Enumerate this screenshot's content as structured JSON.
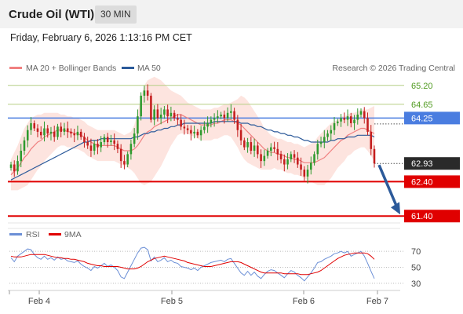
{
  "header": {
    "title": "Crude Oil (WTI)",
    "timeframe": "30 MIN",
    "timestamp": "Friday, February 6, 2026 1:13:16 PM CET"
  },
  "legend": {
    "ma20": "MA 20 + Bollinger Bands",
    "ma50": "MA 50",
    "copyright": "Research © 2026 Trading Central"
  },
  "colors": {
    "bull_candle": "#2e9a2e",
    "bear_candle": "#c41e1e",
    "ma20": "#f08080",
    "ma50": "#2c5a9a",
    "bollinger_fill": "#fde1dc",
    "resistance_line": "#b6cf85",
    "pivot_line": "#4a7de0",
    "support_line": "#e00000",
    "rsi": "#6b8fd6",
    "rsi_ma": "#e00000",
    "forecast_arrow": "#2c5a9a"
  },
  "chart_data": [
    {
      "type": "candlestick",
      "title": "Crude Oil (WTI)",
      "interval": "30 MIN",
      "x_tick_labels": [
        "Feb 4",
        "Feb 5",
        "Feb 6",
        "Feb 7"
      ],
      "ylim": [
        61.2,
        65.4
      ],
      "current_price": 62.93,
      "current_price_label": "62.93",
      "key_levels": [
        {
          "value": 65.2,
          "label": "65.20",
          "kind": "resistance"
        },
        {
          "value": 64.65,
          "label": "64.65",
          "kind": "resistance"
        },
        {
          "value": 64.25,
          "label": "64.25",
          "kind": "pivot"
        },
        {
          "value": 62.4,
          "label": "62.40",
          "kind": "support"
        },
        {
          "value": 61.4,
          "label": "61.40",
          "kind": "support"
        }
      ],
      "close_series": [
        62.9,
        62.7,
        63.0,
        63.3,
        63.6,
        63.9,
        64.1,
        63.95,
        63.85,
        63.75,
        63.95,
        63.8,
        63.85,
        63.7,
        64.0,
        63.85,
        63.95,
        63.85,
        63.8,
        63.75,
        63.85,
        63.7,
        63.55,
        63.45,
        63.3,
        63.5,
        63.4,
        63.55,
        63.7,
        63.55,
        63.6,
        63.5,
        63.35,
        63.0,
        62.9,
        63.2,
        63.5,
        63.8,
        64.3,
        64.9,
        65.05,
        64.9,
        64.2,
        64.5,
        64.25,
        64.35,
        64.5,
        64.3,
        64.4,
        64.25,
        64.2,
        64.0,
        63.95,
        63.9,
        63.8,
        63.85,
        63.75,
        63.9,
        64.0,
        64.1,
        64.2,
        64.25,
        64.3,
        64.35,
        64.25,
        64.4,
        64.45,
        64.2,
        63.9,
        63.6,
        63.4,
        63.55,
        63.3,
        63.45,
        63.2,
        63.0,
        63.15,
        63.3,
        63.4,
        63.35,
        63.2,
        63.05,
        62.9,
        63.05,
        63.2,
        63.1,
        62.9,
        62.75,
        62.55,
        62.75,
        62.95,
        63.2,
        63.5,
        63.55,
        63.7,
        63.8,
        63.9,
        64.1,
        64.15,
        64.25,
        64.2,
        64.3,
        64.1,
        64.2,
        64.35,
        64.45,
        64.25,
        63.85,
        63.35,
        62.93
      ],
      "ma20_series": [
        62.6,
        62.7,
        62.8,
        62.95,
        63.1,
        63.2,
        63.35,
        63.45,
        63.55,
        63.6,
        63.7,
        63.75,
        63.8,
        63.85,
        63.9,
        63.9,
        63.9,
        63.85,
        63.85,
        63.8,
        63.8,
        63.75,
        63.7,
        63.6,
        63.55,
        63.5,
        63.45,
        63.45,
        63.45,
        63.45,
        63.45,
        63.45,
        63.4,
        63.35,
        63.3,
        63.3,
        63.3,
        63.35,
        63.45,
        63.6,
        63.75,
        63.85,
        63.9,
        64.0,
        64.05,
        64.1,
        64.15,
        64.2,
        64.25,
        64.3,
        64.35,
        64.35,
        64.3,
        64.25,
        64.2,
        64.15,
        64.1,
        64.05,
        64.05,
        64.05,
        64.05,
        64.1,
        64.1,
        64.15,
        64.2,
        64.2,
        64.2,
        64.15,
        64.1,
        64.05,
        63.95,
        63.85,
        63.75,
        63.65,
        63.55,
        63.45,
        63.35,
        63.3,
        63.25,
        63.25,
        63.2,
        63.2,
        63.15,
        63.1,
        63.1,
        63.05,
        63.05,
        63.0,
        62.95,
        62.95,
        62.95,
        62.95,
        63.0,
        63.05,
        63.1,
        63.2,
        63.3,
        63.4,
        63.5,
        63.6,
        63.65,
        63.75,
        63.8,
        63.85,
        63.9,
        63.95,
        63.95,
        63.9,
        63.85,
        63.8
      ],
      "ma50_series": [
        62.45,
        62.5,
        62.55,
        62.6,
        62.65,
        62.7,
        62.75,
        62.8,
        62.85,
        62.9,
        62.95,
        63.0,
        63.05,
        63.1,
        63.15,
        63.2,
        63.25,
        63.3,
        63.35,
        63.4,
        63.45,
        63.5,
        63.55,
        63.55,
        63.6,
        63.6,
        63.6,
        63.65,
        63.65,
        63.65,
        63.65,
        63.65,
        63.65,
        63.65,
        63.65,
        63.65,
        63.65,
        63.7,
        63.7,
        63.75,
        63.8,
        63.8,
        63.85,
        63.85,
        63.9,
        63.9,
        63.95,
        63.95,
        64.0,
        64.0,
        64.05,
        64.05,
        64.1,
        64.1,
        64.1,
        64.1,
        64.1,
        64.1,
        64.1,
        64.1,
        64.1,
        64.15,
        64.15,
        64.15,
        64.15,
        64.15,
        64.15,
        64.15,
        64.15,
        64.1,
        64.1,
        64.1,
        64.05,
        64.05,
        64.0,
        64.0,
        63.95,
        63.9,
        63.9,
        63.85,
        63.85,
        63.8,
        63.8,
        63.75,
        63.75,
        63.7,
        63.7,
        63.65,
        63.6,
        63.6,
        63.55,
        63.55,
        63.55,
        63.55,
        63.55,
        63.55,
        63.6,
        63.6,
        63.65,
        63.65,
        63.65,
        63.7,
        63.7,
        63.7,
        63.75,
        63.75,
        63.75,
        63.75,
        63.75,
        63.7
      ],
      "bollinger_width_series": [
        0.45,
        0.55,
        0.65,
        0.75,
        0.85,
        0.9,
        0.9,
        0.85,
        0.8,
        0.75,
        0.7,
        0.65,
        0.6,
        0.55,
        0.5,
        0.45,
        0.45,
        0.45,
        0.45,
        0.45,
        0.45,
        0.45,
        0.45,
        0.45,
        0.45,
        0.45,
        0.45,
        0.45,
        0.45,
        0.45,
        0.45,
        0.45,
        0.45,
        0.45,
        0.45,
        0.5,
        0.55,
        0.7,
        0.95,
        1.25,
        1.45,
        1.5,
        1.5,
        1.45,
        1.35,
        1.25,
        1.1,
        0.95,
        0.8,
        0.7,
        0.6,
        0.55,
        0.5,
        0.45,
        0.45,
        0.45,
        0.45,
        0.45,
        0.45,
        0.45,
        0.45,
        0.45,
        0.45,
        0.45,
        0.45,
        0.45,
        0.5,
        0.6,
        0.7,
        0.85,
        0.9,
        0.9,
        0.85,
        0.8,
        0.75,
        0.7,
        0.6,
        0.55,
        0.5,
        0.45,
        0.45,
        0.45,
        0.45,
        0.45,
        0.45,
        0.45,
        0.45,
        0.45,
        0.45,
        0.5,
        0.55,
        0.6,
        0.7,
        0.75,
        0.8,
        0.8,
        0.8,
        0.75,
        0.7,
        0.7,
        0.65,
        0.6,
        0.6,
        0.55,
        0.55,
        0.55,
        0.55,
        0.6,
        0.7,
        0.8
      ],
      "forecast": {
        "from": 62.93,
        "to": 61.4,
        "direction": "down"
      }
    },
    {
      "type": "line",
      "title": "RSI",
      "series": [
        {
          "name": "RSI",
          "values": [
            62,
            57,
            64,
            67,
            70,
            73,
            72,
            66,
            62,
            60,
            64,
            60,
            62,
            59,
            63,
            60,
            61,
            58,
            57,
            56,
            58,
            54,
            51,
            49,
            46,
            51,
            49,
            52,
            55,
            51,
            53,
            50,
            46,
            38,
            36,
            44,
            52,
            60,
            68,
            74,
            75,
            72,
            58,
            63,
            57,
            59,
            62,
            57,
            59,
            56,
            55,
            51,
            50,
            49,
            47,
            49,
            46,
            50,
            52,
            54,
            56,
            57,
            58,
            59,
            57,
            60,
            61,
            55,
            49,
            43,
            40,
            45,
            40,
            44,
            39,
            36,
            41,
            45,
            47,
            46,
            43,
            40,
            37,
            42,
            46,
            44,
            40,
            37,
            33,
            38,
            43,
            49,
            56,
            57,
            60,
            62,
            64,
            67,
            68,
            70,
            68,
            70,
            64,
            66,
            68,
            70,
            64,
            55,
            45,
            36
          ]
        },
        {
          "name": "9MA",
          "values": [
            64,
            63,
            63,
            63,
            64,
            65,
            66,
            66,
            66,
            66,
            66,
            65,
            64,
            63,
            62,
            62,
            61,
            61,
            60,
            60,
            59,
            58,
            57,
            55,
            54,
            53,
            52,
            52,
            51,
            51,
            51,
            51,
            51,
            50,
            49,
            48,
            48,
            48,
            49,
            51,
            54,
            57,
            59,
            61,
            62,
            63,
            64,
            63,
            62,
            61,
            60,
            59,
            58,
            56,
            55,
            54,
            53,
            52,
            51,
            51,
            51,
            52,
            53,
            54,
            55,
            56,
            57,
            57,
            57,
            56,
            54,
            52,
            50,
            48,
            46,
            44,
            43,
            43,
            43,
            43,
            43,
            43,
            42,
            42,
            42,
            42,
            42,
            41,
            41,
            41,
            42,
            43,
            44,
            46,
            49,
            52,
            55,
            58,
            61,
            63,
            65,
            66,
            67,
            68,
            68,
            68,
            68,
            67,
            64,
            60
          ]
        }
      ],
      "ylim": [
        25,
        78
      ],
      "y_ticks": [
        70,
        50,
        30
      ],
      "y_tick_labels": [
        "70",
        "50",
        "30"
      ]
    }
  ]
}
